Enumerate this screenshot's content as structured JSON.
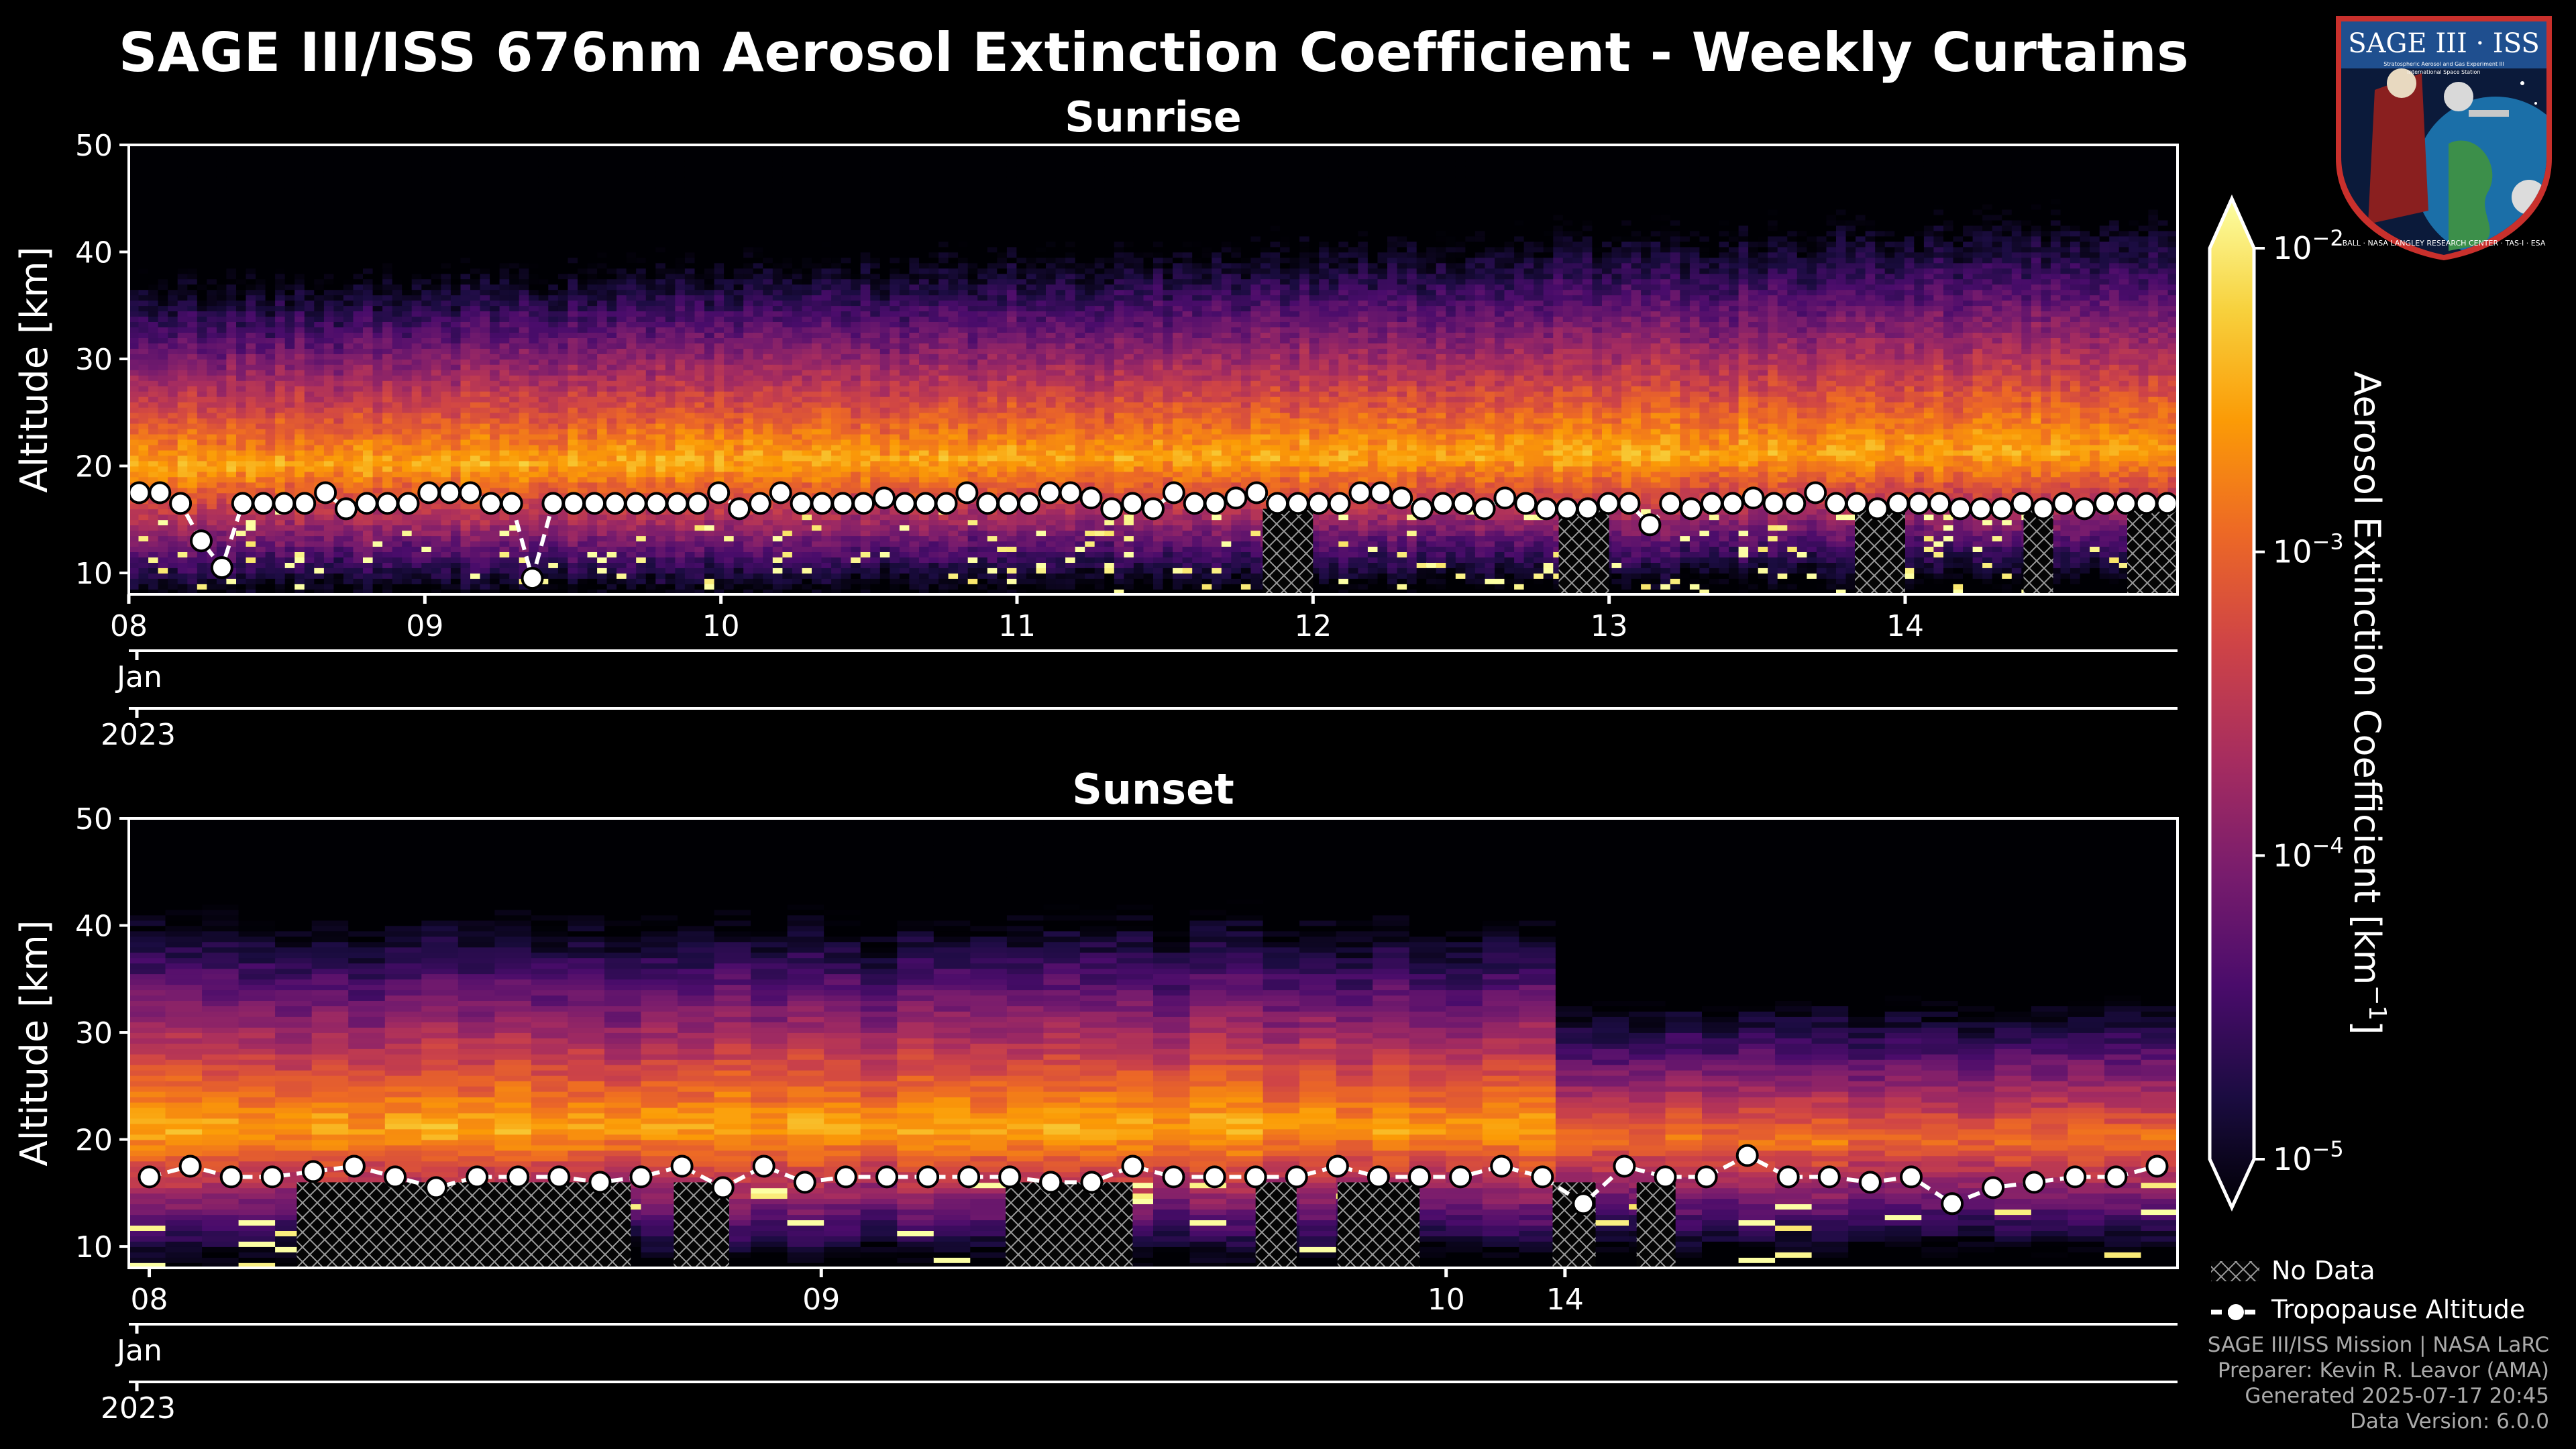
{
  "title": "SAGE III/ISS 676nm Aerosol Extinction Coefficient - Weekly Curtains",
  "badge": {
    "top_text": "SAGE III · ISS",
    "line1": "Stratospheric Aerosol and Gas Experiment III",
    "line2": "International Space Station",
    "ring_text": "BALL · NASA LANGLEY RESEARCH CENTER · TAS-I · ESA"
  },
  "chart_data": [
    {
      "type": "heatmap",
      "panel": "Sunrise",
      "ylabel": "Altitude [km]",
      "ylim": [
        8,
        50
      ],
      "yticks": [
        10,
        20,
        30,
        40,
        50
      ],
      "x_range_days": [
        8.0,
        14.92
      ],
      "x_ticks": [
        {
          "day": 8.0,
          "label": "08"
        },
        {
          "day": 9.0,
          "label": "09"
        },
        {
          "day": 10.0,
          "label": "10"
        },
        {
          "day": 11.0,
          "label": "11"
        },
        {
          "day": 12.0,
          "label": "12"
        },
        {
          "day": 13.0,
          "label": "13"
        },
        {
          "day": 14.0,
          "label": "14"
        }
      ],
      "month_label": "Jan",
      "year_label": "2023",
      "nodata_ranges_days": [
        [
          11.83,
          12.0
        ],
        [
          12.83,
          13.0
        ],
        [
          13.83,
          14.0
        ],
        [
          14.4,
          14.5
        ],
        [
          14.75,
          14.92
        ]
      ],
      "tropopause_altitude_km": [
        17.5,
        17.5,
        16.5,
        13.0,
        10.5,
        16.5,
        16.5,
        16.5,
        16.5,
        17.5,
        16.0,
        16.5,
        16.5,
        16.5,
        17.5,
        17.5,
        17.5,
        16.5,
        16.5,
        9.5,
        16.5,
        16.5,
        16.5,
        16.5,
        16.5,
        16.5,
        16.5,
        16.5,
        17.5,
        16.0,
        16.5,
        17.5,
        16.5,
        16.5,
        16.5,
        16.5,
        17.0,
        16.5,
        16.5,
        16.5,
        17.5,
        16.5,
        16.5,
        16.5,
        17.5,
        17.5,
        17.0,
        16.0,
        16.5,
        16.0,
        17.5,
        16.5,
        16.5,
        17.0,
        17.5,
        16.5,
        16.5,
        16.5,
        16.5,
        17.5,
        17.5,
        17.0,
        16.0,
        16.5,
        16.5,
        16.0,
        17.0,
        16.5,
        16.0,
        16.0,
        16.0,
        16.5,
        16.5,
        14.5,
        16.5,
        16.0,
        16.5,
        16.5,
        17.0,
        16.5,
        16.5,
        17.5,
        16.5,
        16.5,
        16.0,
        16.5,
        16.5,
        16.5,
        16.0,
        16.0,
        16.0,
        16.5,
        16.0,
        16.5,
        16.0,
        16.5,
        16.5,
        16.5,
        16.5
      ]
    },
    {
      "type": "heatmap",
      "panel": "Sunset",
      "ylabel": "Altitude [km]",
      "ylim": [
        8,
        50
      ],
      "yticks": [
        10,
        20,
        30,
        40,
        50
      ],
      "x_ticks": [
        {
          "pos": 0.01,
          "label": "08"
        },
        {
          "pos": 0.338,
          "label": "09"
        },
        {
          "pos": 0.643,
          "label": "10"
        },
        {
          "pos": 0.701,
          "label": "14"
        }
      ],
      "month_label": "Jan",
      "year_label": "2023",
      "data_change_pos": 0.694,
      "nodata_ranges_pos": [
        [
          0.082,
          0.245
        ],
        [
          0.266,
          0.293
        ],
        [
          0.428,
          0.49
        ],
        [
          0.55,
          0.57
        ],
        [
          0.59,
          0.63
        ],
        [
          0.695,
          0.716
        ],
        [
          0.736,
          0.755
        ]
      ],
      "tropopause_altitude_km": [
        16.5,
        17.5,
        16.5,
        16.5,
        17.0,
        17.5,
        16.5,
        15.5,
        16.5,
        16.5,
        16.5,
        16.0,
        16.5,
        17.5,
        15.5,
        17.5,
        16.0,
        16.5,
        16.5,
        16.5,
        16.5,
        16.5,
        16.0,
        16.0,
        17.5,
        16.5,
        16.5,
        16.5,
        16.5,
        17.5,
        16.5,
        16.5,
        16.5,
        17.5,
        16.5,
        14.0,
        17.5,
        16.5,
        16.5,
        18.5,
        16.5,
        16.5,
        16.0,
        16.5,
        14.0,
        15.5,
        16.0,
        16.5,
        16.5,
        17.5
      ]
    }
  ],
  "colorbar": {
    "label": "Aerosol Extinction Coefficient [km",
    "label_sup": "−1",
    "label_end": "]",
    "scale": "log",
    "range": [
      1e-05,
      0.01
    ],
    "ticks": [
      {
        "base": "10",
        "exp": "−2",
        "value": 0.01
      },
      {
        "base": "10",
        "exp": "−3",
        "value": 0.001
      },
      {
        "base": "10",
        "exp": "−4",
        "value": 0.0001
      },
      {
        "base": "10",
        "exp": "−5",
        "value": 1e-05
      }
    ],
    "colormap": [
      "#000004",
      "#1b0c41",
      "#4a0c6b",
      "#781c6d",
      "#a52c60",
      "#cf4446",
      "#ed6925",
      "#fb9b06",
      "#f7d13d",
      "#fcffa4"
    ]
  },
  "legend": {
    "nodata": "No Data",
    "tropopause": "Tropopause Altitude"
  },
  "credits": [
    "SAGE III/ISS Mission | NASA LaRC",
    "Preparer: Kevin R. Leavor (AMA)",
    "Generated 2025-07-17 20:45",
    "Data Version: 6.0.0"
  ]
}
